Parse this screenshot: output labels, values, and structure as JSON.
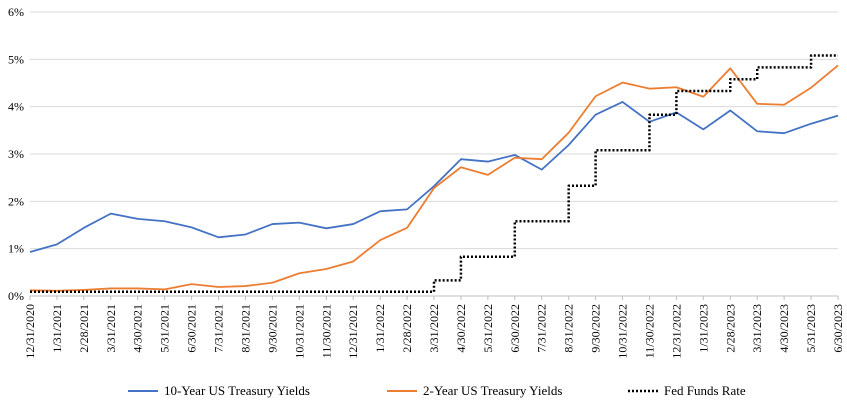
{
  "chart_data": {
    "type": "line",
    "title": "",
    "xlabel": "",
    "ylabel": "",
    "ylim": [
      0,
      6
    ],
    "yticks": [
      "0%",
      "1%",
      "2%",
      "3%",
      "4%",
      "5%",
      "6%"
    ],
    "grid": "horizontal",
    "legend_position": "bottom",
    "categories": [
      "12/31/2020",
      "1/31/2021",
      "2/28/2021",
      "3/31/2021",
      "4/30/2021",
      "5/31/2021",
      "6/30/2021",
      "7/31/2021",
      "8/31/2021",
      "9/30/2021",
      "10/31/2021",
      "11/30/2021",
      "12/31/2021",
      "1/31/2022",
      "2/28/2022",
      "3/31/2022",
      "4/30/2022",
      "5/31/2022",
      "6/30/2022",
      "7/31/2022",
      "8/31/2022",
      "9/30/2022",
      "10/31/2022",
      "11/30/2022",
      "12/31/2022",
      "1/31/2023",
      "2/28/2023",
      "3/31/2023",
      "4/30/2023",
      "5/31/2023",
      "6/30/2023"
    ],
    "series": [
      {
        "name": "10-Year US Treasury Yields",
        "color": "#4472C4",
        "style": "solid",
        "values": [
          0.93,
          1.09,
          1.44,
          1.74,
          1.63,
          1.58,
          1.45,
          1.24,
          1.3,
          1.52,
          1.55,
          1.43,
          1.52,
          1.79,
          1.83,
          2.32,
          2.89,
          2.84,
          2.98,
          2.67,
          3.19,
          3.83,
          4.1,
          3.68,
          3.88,
          3.52,
          3.92,
          3.48,
          3.44,
          3.64,
          3.81
        ]
      },
      {
        "name": "2-Year US Treasury Yields",
        "color": "#ED7D31",
        "style": "solid",
        "values": [
          0.12,
          0.11,
          0.13,
          0.16,
          0.16,
          0.14,
          0.25,
          0.19,
          0.21,
          0.28,
          0.48,
          0.57,
          0.73,
          1.18,
          1.44,
          2.28,
          2.72,
          2.56,
          2.92,
          2.89,
          3.45,
          4.22,
          4.51,
          4.38,
          4.41,
          4.21,
          4.81,
          4.06,
          4.04,
          4.4,
          4.87
        ]
      },
      {
        "name": "Fed Funds Rate",
        "color": "#000000",
        "style": "dotted",
        "step": true,
        "values": [
          0.09,
          0.09,
          0.09,
          0.09,
          0.09,
          0.09,
          0.09,
          0.09,
          0.09,
          0.09,
          0.09,
          0.09,
          0.09,
          0.09,
          0.09,
          0.33,
          0.83,
          0.83,
          1.58,
          1.58,
          2.33,
          3.08,
          3.08,
          3.83,
          4.33,
          4.33,
          4.58,
          4.83,
          4.83,
          5.08,
          5.08
        ]
      }
    ]
  }
}
